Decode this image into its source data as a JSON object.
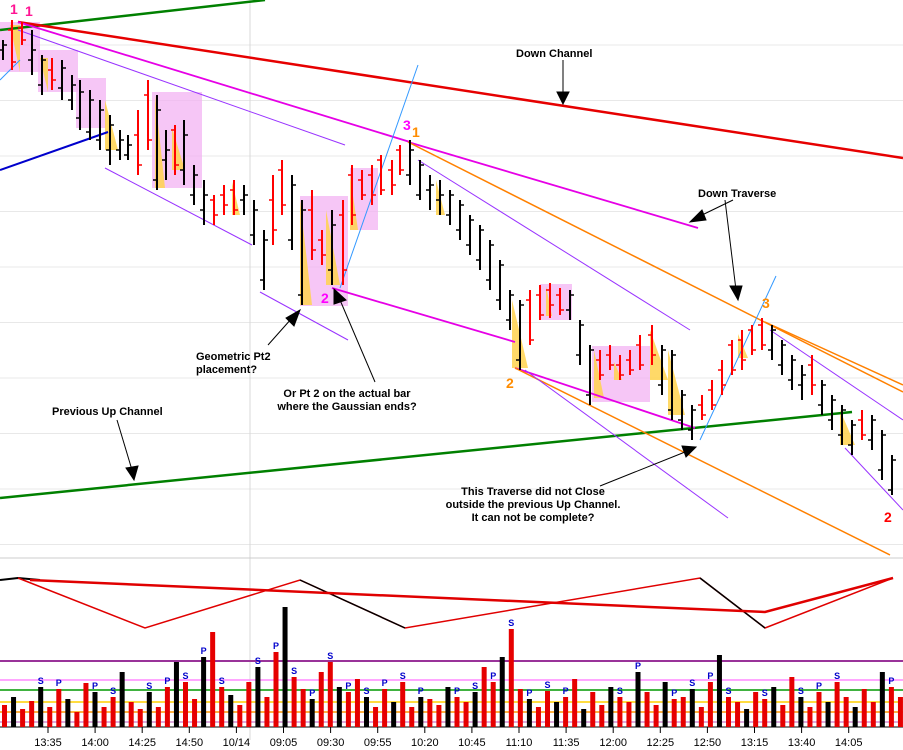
{
  "chart_data": {
    "type": "candlestick",
    "x_ticks": [
      "13:35",
      "14:00",
      "14:25",
      "14:50",
      "10/14",
      "09:05",
      "09:30",
      "09:55",
      "10:20",
      "10:45",
      "11:10",
      "11:35",
      "12:00",
      "12:25",
      "12:50",
      "13:15",
      "13:40",
      "14:05"
    ],
    "annotations": [
      {
        "id": "down-channel",
        "text": "Down Channel"
      },
      {
        "id": "down-traverse",
        "text": "Down Traverse"
      },
      {
        "id": "geometric",
        "text": "Geometric Pt2\nplacement?"
      },
      {
        "id": "or-pt2",
        "text": "Or Pt 2 on the actual bar\nwhere the Gaussian ends?"
      },
      {
        "id": "prev-up",
        "text": "Previous Up Channel"
      },
      {
        "id": "traverse-note",
        "text": "This Traverse did not Close\noutside the previous Up Channel.\nIt can not be complete?"
      }
    ],
    "point_labels": [
      {
        "text": "1",
        "color": "#ff1493"
      },
      {
        "text": "1",
        "color": "#ff1493"
      },
      {
        "text": "2",
        "color": "#ff00ff"
      },
      {
        "text": "3",
        "color": "#ff00ff"
      },
      {
        "text": "1",
        "color": "#ff8c00"
      },
      {
        "text": "2",
        "color": "#ff8c00"
      },
      {
        "text": "3",
        "color": "#ff8c00"
      },
      {
        "text": "2",
        "color": "#ff0000"
      }
    ],
    "volume_markers": [
      {
        "text": "S",
        "color": "#0000cc"
      },
      {
        "text": "P",
        "color": "#0000cc"
      }
    ],
    "colors": {
      "down_channel": "#e60000",
      "previous_up_channel": "#008000",
      "traverse": "#e600e6",
      "orange_lines": "#ff8000",
      "thin_channel": "#9933ff",
      "blue_lines": "#3399ff",
      "up_bar": "#000000",
      "down_bar": "#ff0000",
      "highlight_box": "#f0b0f0",
      "gaussian_fill": "#ffd24d"
    }
  }
}
